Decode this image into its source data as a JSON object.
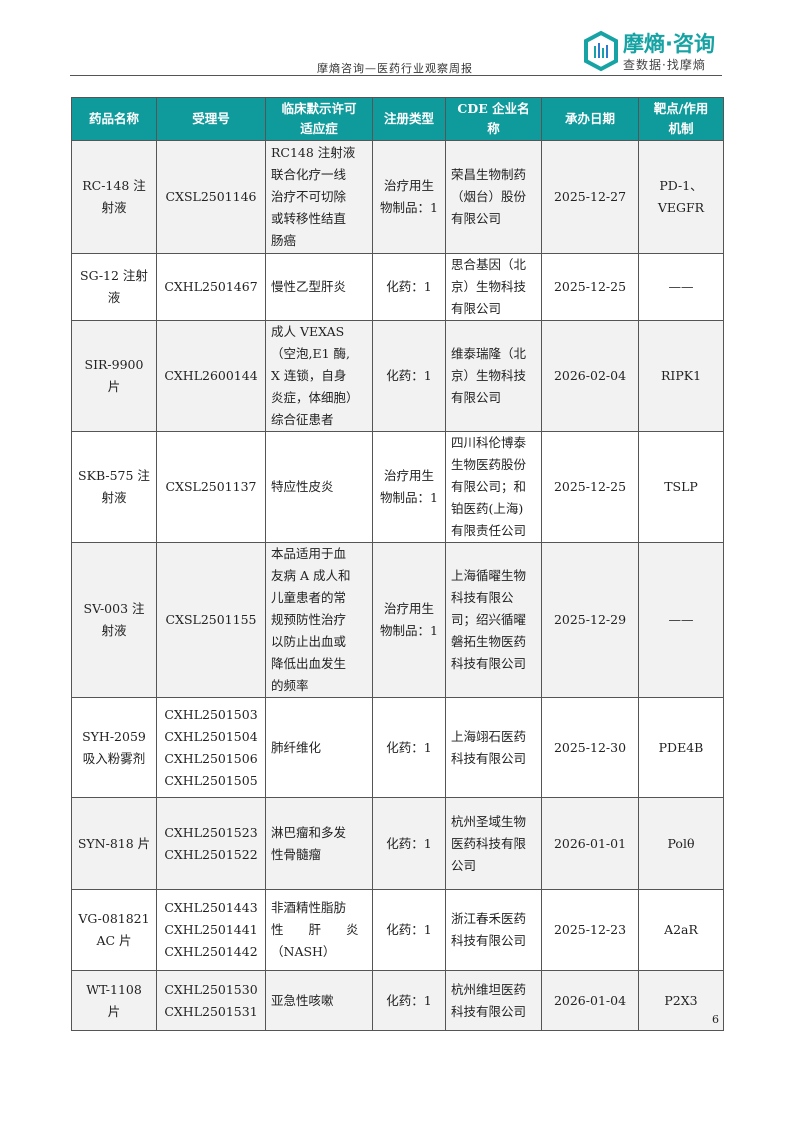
{
  "header": {
    "title": "摩熵咨询—医药行业观察周报",
    "logo_main": "摩熵·咨询",
    "logo_sub": "查数据·找摩熵",
    "accent": "#0f9a9c"
  },
  "table": {
    "columns": [
      "药品名称",
      "受理号",
      "临床默示许可\n适应症",
      "注册类型",
      "CDE 企业名\n称",
      "承办日期",
      "靶点/作用\n机制"
    ],
    "rows": [
      [
        "RC-148 注\n射液",
        "CXSL2501146",
        "RC148 注射液\n联合化疗一线\n治疗不可切除\n或转移性结直\n肠癌",
        "治疗用生\n物制品：1",
        "荣昌生物制药\n（烟台）股份\n有限公司",
        "2025-12-27",
        "PD-1、\nVEGFR"
      ],
      [
        "SG-12 注射\n液",
        "CXHL2501467",
        "慢性乙型肝炎",
        "化药：1",
        "思合基因（北\n京）生物科技\n有限公司",
        "2025-12-25",
        "——"
      ],
      [
        "SIR-9900\n片",
        "CXHL2600144",
        "成人 VEXAS\n（空泡,E1 酶,\nX 连锁，自身\n炎症，体细胞）\n综合征患者",
        "化药：1",
        "维泰瑞隆（北\n京）生物科技\n有限公司",
        "2026-02-04",
        "RIPK1"
      ],
      [
        "SKB-575 注\n射液",
        "CXSL2501137",
        "特应性皮炎",
        "治疗用生\n物制品：1",
        "四川科伦博泰\n生物医药股份\n有限公司；和\n铂医药(上海)\n有限责任公司",
        "2025-12-25",
        "TSLP"
      ],
      [
        "SV-003 注\n射液",
        "CXSL2501155",
        "本品适用于血\n友病 A 成人和\n儿童患者的常\n规预防性治疗\n以防止出血或\n降低出血发生\n的频率",
        "治疗用生\n物制品：1",
        "上海循曜生物\n科技有限公\n司；绍兴循曜\n磐拓生物医药\n科技有限公司",
        "2025-12-29",
        "——"
      ],
      [
        "SYH-2059\n吸入粉雾剂",
        "CXHL2501503\nCXHL2501504\nCXHL2501506\nCXHL2501505",
        "肺纤维化",
        "化药：1",
        "上海翊石医药\n科技有限公司",
        "2025-12-30",
        "PDE4B"
      ],
      [
        "SYN-818 片",
        "CXHL2501523\nCXHL2501522",
        "淋巴瘤和多发\n性骨髓瘤",
        "化药：1",
        "杭州圣域生物\n医药科技有限\n公司",
        "2026-01-01",
        "Polθ"
      ],
      [
        "VG-081821\nAC 片",
        "CXHL2501443\nCXHL2501441\nCXHL2501442",
        "非酒精性脂肪\n性　　肝　　炎\n（NASH）",
        "化药：1",
        "浙江春禾医药\n科技有限公司",
        "2025-12-23",
        "A2aR"
      ],
      [
        "WT-1108\n片",
        "CXHL2501530\nCXHL2501531",
        "亚急性咳嗽",
        "化药：1",
        "杭州维坦医药\n科技有限公司",
        "2026-01-04",
        "P2X3"
      ]
    ]
  },
  "page_number": "6"
}
